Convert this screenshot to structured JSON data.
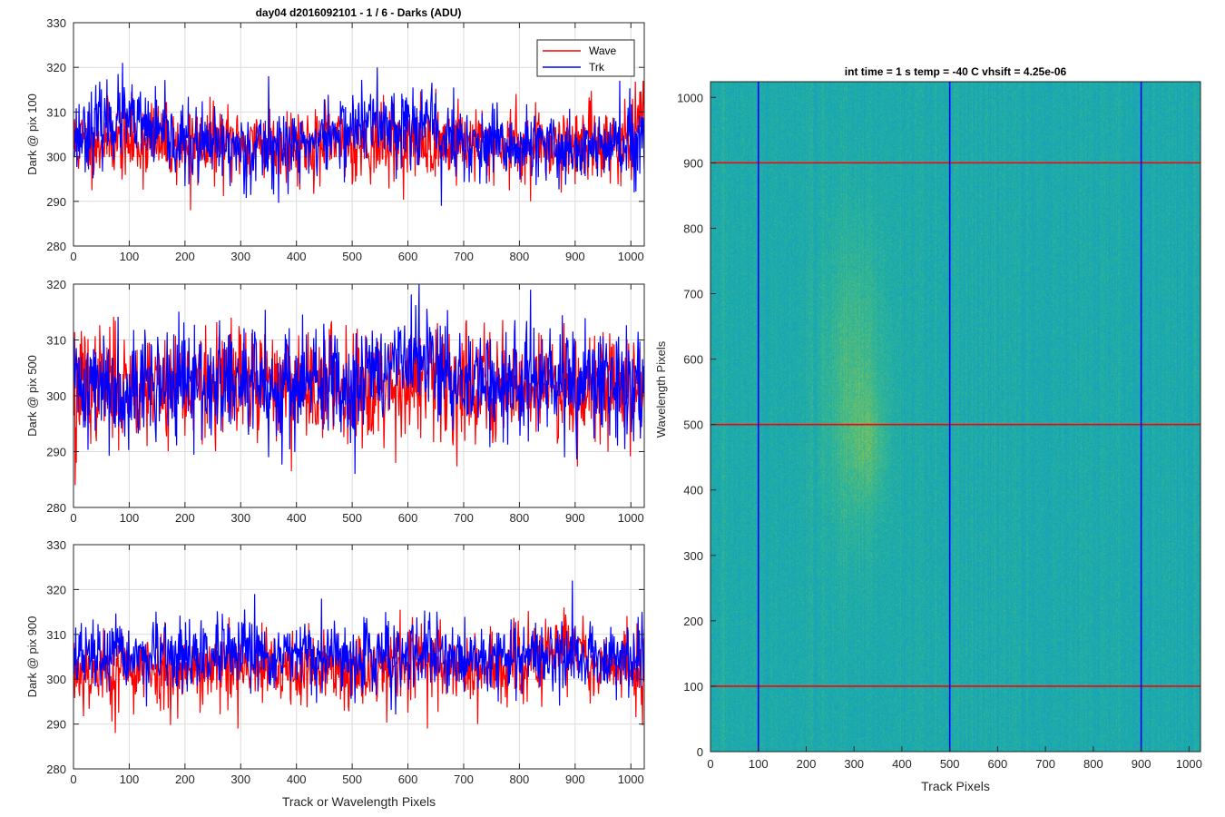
{
  "figure_title": "day04 d2016092101 - 1 / 6 - Darks (ADU)",
  "chart_data": [
    {
      "type": "line",
      "ylabel": "Dark @ pix 100",
      "xlabel": "",
      "xlim": [
        0,
        1024
      ],
      "ylim": [
        280,
        330
      ],
      "xticks": [
        0,
        100,
        200,
        300,
        400,
        500,
        600,
        700,
        800,
        900,
        1000
      ],
      "yticks": [
        280,
        290,
        300,
        310,
        320,
        330
      ],
      "grid": true,
      "legend": {
        "position": "top-right",
        "entries": [
          "Wave",
          "Trk"
        ]
      },
      "series": [
        {
          "name": "Wave",
          "color": "#ff0000",
          "mean": 303,
          "noise": 4.2,
          "bumps": [
            [
              65,
              304,
              14
            ],
            [
              1020,
              309,
              6
            ]
          ],
          "seed": 11,
          "spikes": [
            [
              210,
              288
            ],
            [
              690,
              313
            ],
            [
              1022,
              317
            ],
            [
              140,
              312
            ],
            [
              820,
              290
            ]
          ]
        },
        {
          "name": "Trk",
          "color": "#0000ff",
          "mean": 302,
          "noise": 4.2,
          "bumps": [
            [
              80,
              308,
              60
            ],
            [
              530,
              307,
              60
            ],
            [
              630,
              306,
              40
            ]
          ],
          "seed": 23,
          "spikes": [
            [
              88,
              321
            ],
            [
              545,
              320
            ],
            [
              350,
              318
            ],
            [
              980,
              317
            ],
            [
              660,
              289
            ]
          ]
        }
      ]
    },
    {
      "type": "line",
      "ylabel": "Dark @ pix 500",
      "xlabel": "",
      "xlim": [
        0,
        1024
      ],
      "ylim": [
        280,
        320
      ],
      "xticks": [
        0,
        100,
        200,
        300,
        400,
        500,
        600,
        700,
        800,
        900,
        1000
      ],
      "yticks": [
        280,
        290,
        300,
        310,
        320
      ],
      "grid": true,
      "legend": null,
      "series": [
        {
          "name": "Wave",
          "color": "#ff0000",
          "mean": 302,
          "noise": 5.0,
          "bumps": [],
          "seed": 37,
          "spikes": [
            [
              3,
              284
            ],
            [
              5,
              288
            ],
            [
              880,
              313
            ],
            [
              300,
              311
            ]
          ]
        },
        {
          "name": "Trk",
          "color": "#0000ff",
          "mean": 302,
          "noise": 5.0,
          "bumps": [
            [
              600,
              306,
              60
            ]
          ],
          "seed": 41,
          "spikes": [
            [
              505,
              286
            ],
            [
              620,
              320
            ],
            [
              820,
              319
            ],
            [
              350,
              289
            ]
          ]
        }
      ]
    },
    {
      "type": "line",
      "ylabel": "Dark @ pix 900",
      "xlabel": "Track or Wavelength Pixels",
      "xlim": [
        0,
        1024
      ],
      "ylim": [
        280,
        330
      ],
      "xticks": [
        0,
        100,
        200,
        300,
        400,
        500,
        600,
        700,
        800,
        900,
        1000
      ],
      "yticks": [
        280,
        290,
        300,
        310,
        320,
        330
      ],
      "grid": true,
      "legend": null,
      "series": [
        {
          "name": "Wave",
          "color": "#ff0000",
          "mean": 302,
          "noise": 4.3,
          "bumps": [
            [
              880,
              307,
              40
            ],
            [
              620,
              304,
              60
            ]
          ],
          "seed": 53,
          "spikes": [
            [
              75,
              288
            ],
            [
              295,
              289
            ],
            [
              635,
              289
            ],
            [
              725,
              290
            ],
            [
              880,
              316
            ]
          ]
        },
        {
          "name": "Trk",
          "color": "#0000ff",
          "mean": 305,
          "noise": 3.8,
          "bumps": [],
          "seed": 67,
          "spikes": [
            [
              895,
              322
            ],
            [
              325,
              319
            ],
            [
              560,
              315
            ],
            [
              1020,
              315
            ]
          ]
        }
      ]
    },
    {
      "type": "heatmap",
      "title": "int time = 1 s   temp = -40 C   vhsift = 4.25e-06",
      "xlabel": "Track Pixels",
      "ylabel": "Wavelength Pixels",
      "xlim": [
        0,
        1024
      ],
      "ylim": [
        0,
        1024
      ],
      "xticks": [
        0,
        100,
        200,
        300,
        400,
        500,
        600,
        700,
        800,
        900,
        1000
      ],
      "yticks": [
        0,
        100,
        200,
        300,
        400,
        500,
        600,
        700,
        800,
        900,
        1000
      ],
      "colormap": [
        "#3d6fc4",
        "#1f94c9",
        "#17a9b0",
        "#3cb88c",
        "#86c25a",
        "#c6c63a"
      ],
      "base_level": 0.42,
      "hotspots": [
        {
          "x": 300,
          "y": 560,
          "sx": 45,
          "sy": 170,
          "amp": 0.22
        },
        {
          "x": 330,
          "y": 470,
          "sx": 25,
          "sy": 60,
          "amp": 0.12
        }
      ],
      "vertical_lines": {
        "color": "#0000ff",
        "x": [
          100,
          500,
          900
        ]
      },
      "horizontal_lines": {
        "color": "#ff0000",
        "y": [
          100,
          500,
          900
        ]
      }
    }
  ]
}
